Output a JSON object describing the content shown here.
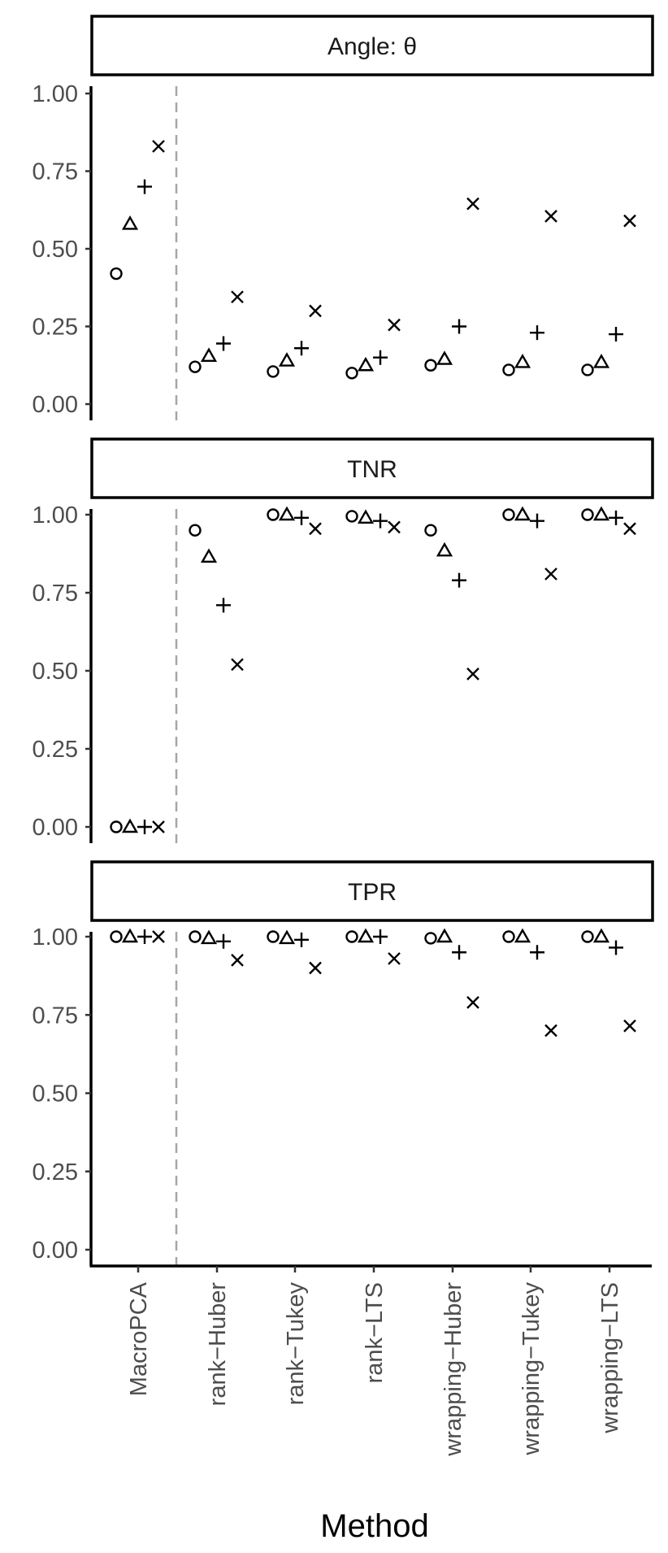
{
  "chart_data": {
    "type": "scatter",
    "xlabel": "Method",
    "categories": [
      "MacroPCA",
      "rank−Huber",
      "rank−Tukey",
      "rank−LTS",
      "wrapping−Huber",
      "wrapping−Tukey",
      "wrapping−LTS"
    ],
    "yticks": [
      "0.00",
      "0.25",
      "0.50",
      "0.75",
      "1.00"
    ],
    "ylim": [
      0,
      1
    ],
    "shapes": [
      "circle",
      "triangle",
      "plus",
      "cross"
    ],
    "reference_line": {
      "style": "dashed",
      "between": [
        "MacroPCA",
        "rank−Huber"
      ]
    },
    "panels": [
      {
        "title": "Angle: θ",
        "series": [
          {
            "shape": "circle",
            "values": [
              0.42,
              0.12,
              0.105,
              0.1,
              0.125,
              0.11,
              0.11
            ]
          },
          {
            "shape": "triangle",
            "values": [
              0.58,
              0.155,
              0.14,
              0.125,
              0.145,
              0.135,
              0.135
            ]
          },
          {
            "shape": "plus",
            "values": [
              0.7,
              0.195,
              0.18,
              0.15,
              0.25,
              0.23,
              0.225
            ]
          },
          {
            "shape": "cross",
            "values": [
              0.83,
              0.345,
              0.3,
              0.255,
              0.645,
              0.605,
              0.59
            ]
          }
        ]
      },
      {
        "title": "TNR",
        "series": [
          {
            "shape": "circle",
            "values": [
              0.0,
              0.95,
              1.0,
              0.995,
              0.95,
              1.0,
              1.0
            ]
          },
          {
            "shape": "triangle",
            "values": [
              0.0,
              0.865,
              1.0,
              0.99,
              0.885,
              1.0,
              1.0
            ]
          },
          {
            "shape": "plus",
            "values": [
              0.0,
              0.71,
              0.99,
              0.98,
              0.79,
              0.98,
              0.99
            ]
          },
          {
            "shape": "cross",
            "values": [
              0.0,
              0.52,
              0.955,
              0.96,
              0.49,
              0.81,
              0.955
            ]
          }
        ]
      },
      {
        "title": "TPR",
        "series": [
          {
            "shape": "circle",
            "values": [
              1.0,
              1.0,
              1.0,
              1.0,
              0.995,
              1.0,
              1.0
            ]
          },
          {
            "shape": "triangle",
            "values": [
              1.0,
              0.995,
              0.995,
              1.0,
              1.0,
              1.0,
              1.0
            ]
          },
          {
            "shape": "plus",
            "values": [
              1.0,
              0.985,
              0.99,
              1.0,
              0.95,
              0.95,
              0.965
            ]
          },
          {
            "shape": "cross",
            "values": [
              1.0,
              0.925,
              0.9,
              0.93,
              0.79,
              0.7,
              0.715
            ]
          }
        ]
      }
    ]
  }
}
